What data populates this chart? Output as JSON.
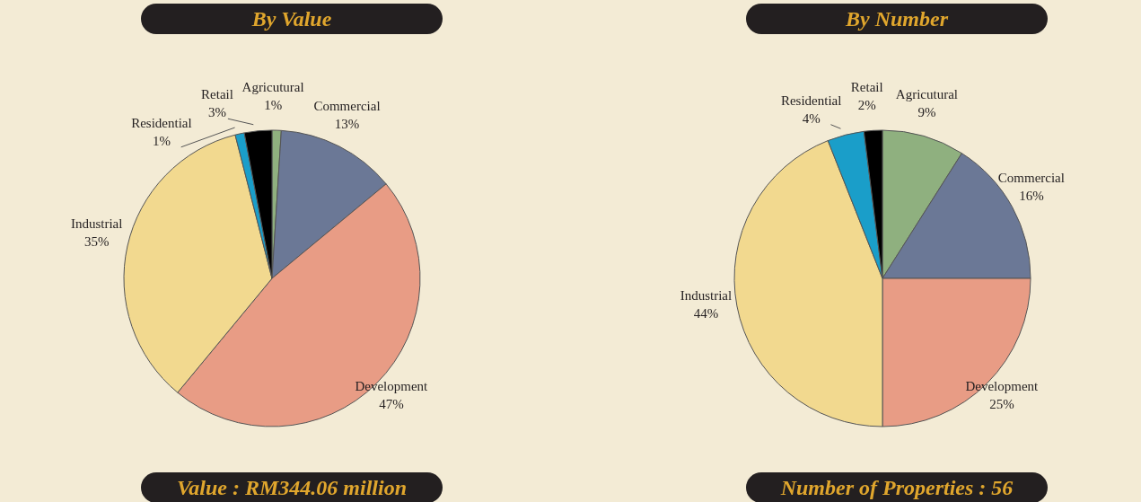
{
  "chart_data": [
    {
      "type": "pie",
      "title": "By Value",
      "categories": [
        "Agricutural",
        "Commercial",
        "Development",
        "Industrial",
        "Residential",
        "Retail"
      ],
      "values": [
        1,
        13,
        47,
        35,
        1,
        3
      ],
      "value_labels": [
        "1%",
        "13%",
        "47%",
        "35%",
        "1%",
        "3%"
      ],
      "colors": [
        "#8fb07f",
        "#6b7896",
        "#e89c85",
        "#f2d98f",
        "#1a9ec9",
        "#000000"
      ],
      "legend": false,
      "annotations": [
        "Value : RM344.06 million"
      ]
    },
    {
      "type": "pie",
      "title": "By Number",
      "categories": [
        "Agricutural",
        "Commercial",
        "Development",
        "Industrial",
        "Residential",
        "Retail"
      ],
      "values": [
        9,
        16,
        25,
        44,
        4,
        2
      ],
      "value_labels": [
        "9%",
        "16%",
        "25%",
        "44%",
        "4%",
        "2%"
      ],
      "colors": [
        "#8fb07f",
        "#6b7896",
        "#e89c85",
        "#f2d98f",
        "#1a9ec9",
        "#000000"
      ],
      "legend": false,
      "annotations": [
        "Number of Properties : 56"
      ]
    }
  ]
}
